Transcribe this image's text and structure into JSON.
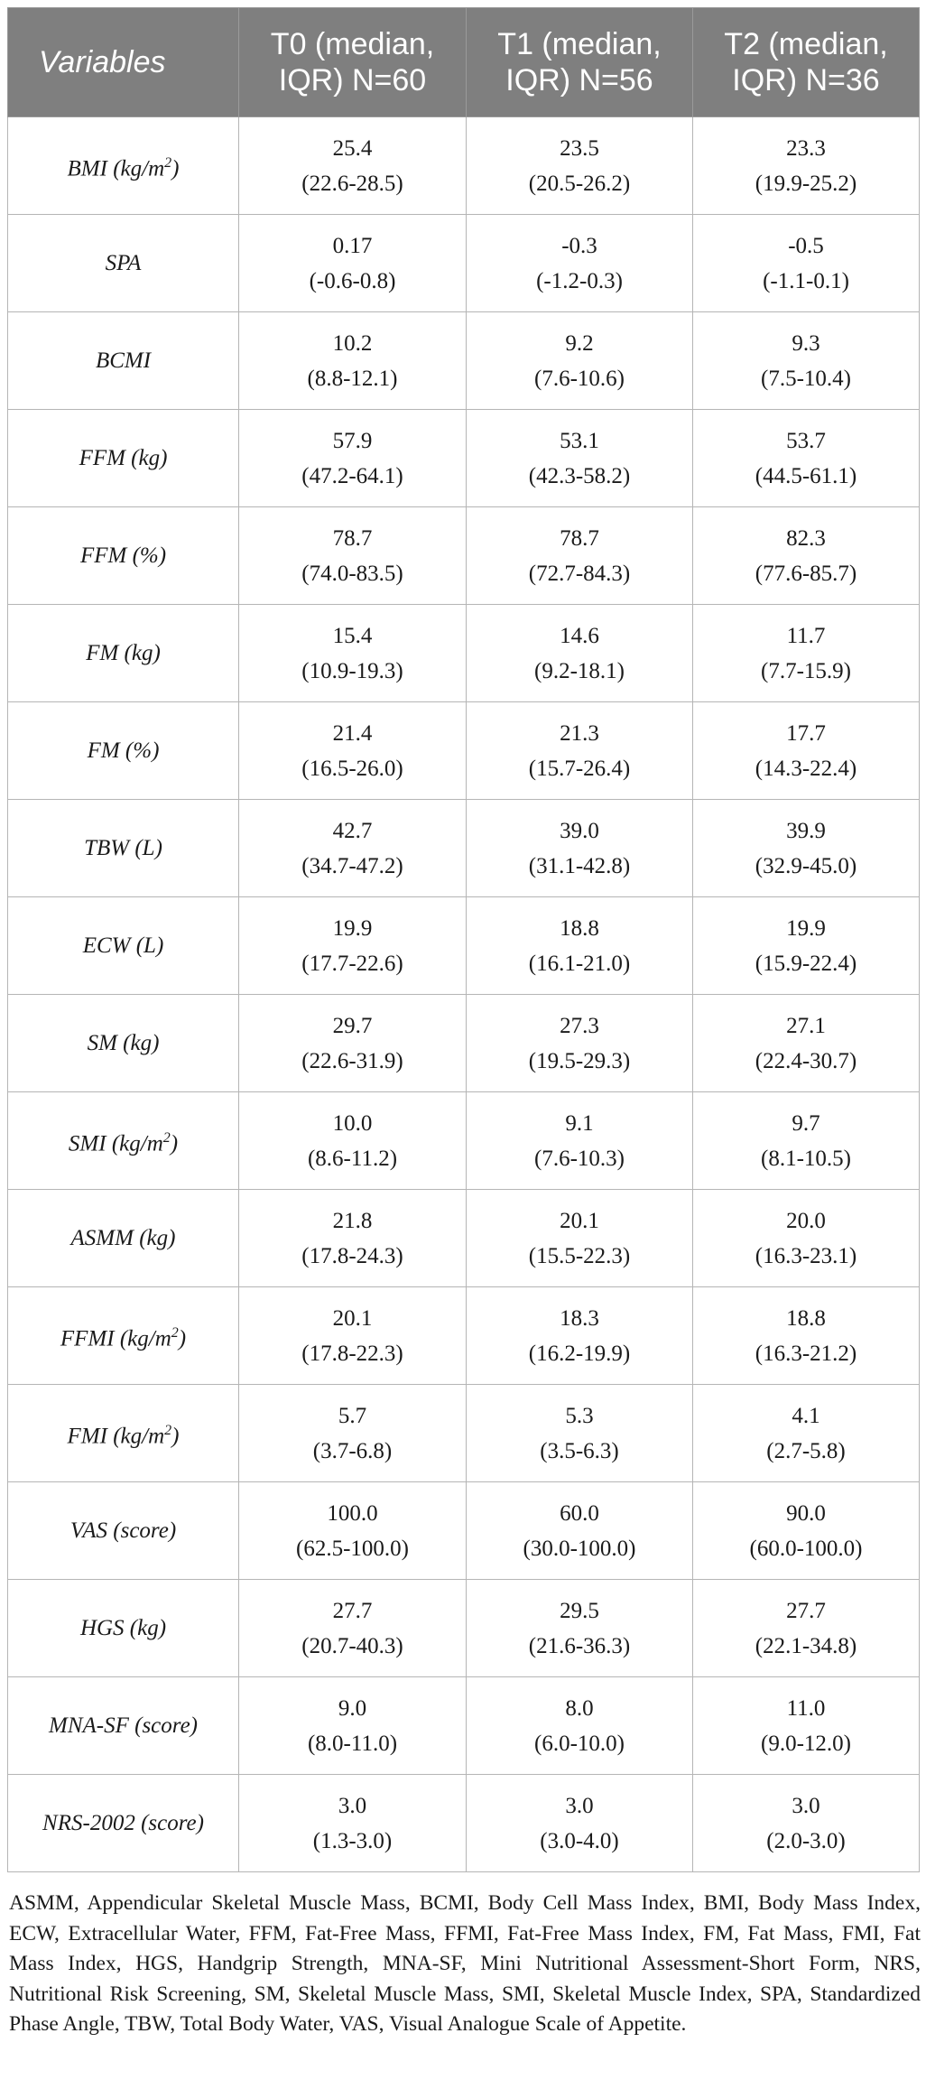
{
  "table": {
    "headers": [
      "Variables",
      "T0 (median, IQR) N=60",
      "T1 (median, IQR) N=56",
      "T2 (median, IQR) N=36"
    ],
    "header_lines": [
      [
        "Variables"
      ],
      [
        "T0 (median,",
        "IQR) N=60"
      ],
      [
        "T1 (median,",
        "IQR) N=56"
      ],
      [
        "T2 (median,",
        "IQR) N=36"
      ]
    ],
    "rows": [
      {
        "label": "BMI (kg/m",
        "sup": "2",
        "label_end": ")",
        "t0": [
          "25.4",
          "(22.6-28.5)"
        ],
        "t1": [
          "23.5",
          "(20.5-26.2)"
        ],
        "t2": [
          "23.3",
          "(19.9-25.2)"
        ]
      },
      {
        "label": "SPA",
        "t0": [
          "0.17",
          "(-0.6-0.8)"
        ],
        "t1": [
          "-0.3",
          "(-1.2-0.3)"
        ],
        "t2": [
          "-0.5",
          "(-1.1-0.1)"
        ]
      },
      {
        "label": "BCMI",
        "t0": [
          "10.2",
          "(8.8-12.1)"
        ],
        "t1": [
          "9.2",
          "(7.6-10.6)"
        ],
        "t2": [
          "9.3",
          "(7.5-10.4)"
        ]
      },
      {
        "label": "FFM (kg)",
        "t0": [
          "57.9",
          "(47.2-64.1)"
        ],
        "t1": [
          "53.1",
          "(42.3-58.2)"
        ],
        "t2": [
          "53.7",
          "(44.5-61.1)"
        ]
      },
      {
        "label": "FFM (%)",
        "t0": [
          "78.7",
          "(74.0-83.5)"
        ],
        "t1": [
          "78.7",
          "(72.7-84.3)"
        ],
        "t2": [
          "82.3",
          "(77.6-85.7)"
        ]
      },
      {
        "label": "FM (kg)",
        "t0": [
          "15.4",
          "(10.9-19.3)"
        ],
        "t1": [
          "14.6",
          "(9.2-18.1)"
        ],
        "t2": [
          "11.7",
          "(7.7-15.9)"
        ]
      },
      {
        "label": "FM (%)",
        "t0": [
          "21.4",
          "(16.5-26.0)"
        ],
        "t1": [
          "21.3",
          "(15.7-26.4)"
        ],
        "t2": [
          "17.7",
          "(14.3-22.4)"
        ]
      },
      {
        "label": "TBW (L)",
        "t0": [
          "42.7",
          "(34.7-47.2)"
        ],
        "t1": [
          "39.0",
          "(31.1-42.8)"
        ],
        "t2": [
          "39.9",
          "(32.9-45.0)"
        ]
      },
      {
        "label": "ECW (L)",
        "t0": [
          "19.9",
          "(17.7-22.6)"
        ],
        "t1": [
          "18.8",
          "(16.1-21.0)"
        ],
        "t2": [
          "19.9",
          "(15.9-22.4)"
        ]
      },
      {
        "label": "SM (kg)",
        "t0": [
          "29.7",
          "(22.6-31.9)"
        ],
        "t1": [
          "27.3",
          "(19.5-29.3)"
        ],
        "t2": [
          "27.1",
          "(22.4-30.7)"
        ]
      },
      {
        "label": "SMI (kg/m",
        "sup": "2",
        "label_end": ")",
        "t0": [
          "10.0",
          "(8.6-11.2)"
        ],
        "t1": [
          "9.1",
          "(7.6-10.3)"
        ],
        "t2": [
          "9.7",
          "(8.1-10.5)"
        ]
      },
      {
        "label": "ASMM (kg)",
        "t0": [
          "21.8",
          "(17.8-24.3)"
        ],
        "t1": [
          "20.1",
          "(15.5-22.3)"
        ],
        "t2": [
          "20.0",
          "(16.3-23.1)"
        ]
      },
      {
        "label": "FFMI (kg/m",
        "sup": "2",
        "label_end": ")",
        "t0": [
          "20.1",
          "(17.8-22.3)"
        ],
        "t1": [
          "18.3",
          "(16.2-19.9)"
        ],
        "t2": [
          "18.8",
          "(16.3-21.2)"
        ]
      },
      {
        "label": "FMI (kg/m",
        "sup": "2",
        "label_end": ")",
        "t0": [
          "5.7",
          "(3.7-6.8)"
        ],
        "t1": [
          "5.3",
          "(3.5-6.3)"
        ],
        "t2": [
          "4.1",
          "(2.7-5.8)"
        ]
      },
      {
        "label": "VAS (score)",
        "t0": [
          "100.0",
          "(62.5-100.0)"
        ],
        "t1": [
          "60.0",
          "(30.0-100.0)"
        ],
        "t2": [
          "90.0",
          "(60.0-100.0)"
        ]
      },
      {
        "label": "HGS (kg)",
        "t0": [
          "27.7",
          "(20.7-40.3)"
        ],
        "t1": [
          "29.5",
          "(21.6-36.3)"
        ],
        "t2": [
          "27.7",
          "(22.1-34.8)"
        ]
      },
      {
        "label": "MNA-SF (score)",
        "t0": [
          "9.0",
          "(8.0-11.0)"
        ],
        "t1": [
          "8.0",
          "(6.0-10.0)"
        ],
        "t2": [
          "11.0",
          "(9.0-12.0)"
        ]
      },
      {
        "label": "NRS-2002 (score)",
        "t0": [
          "3.0",
          "(1.3-3.0)"
        ],
        "t1": [
          "3.0",
          "(3.0-4.0)"
        ],
        "t2": [
          "3.0",
          "(2.0-3.0)"
        ]
      }
    ]
  },
  "footnote": "ASMM, Appendicular Skeletal Muscle Mass, BCMI, Body Cell Mass Index, BMI, Body Mass Index, ECW, Extracellular Water, FFM, Fat-Free Mass, FFMI, Fat-Free Mass Index, FM, Fat Mass, FMI, Fat Mass Index, HGS, Handgrip Strength, MNA-SF, Mini Nutritional Assessment-Short Form, NRS, Nutritional Risk Screening, SM, Skeletal Muscle Mass, SMI, Skeletal Muscle Index, SPA, Standardized Phase Angle, TBW, Total Body Water, VAS, Visual Analogue Scale of Appetite.",
  "colors": {
    "header_bg": "#7f7f7f",
    "header_text": "#ffffff",
    "border": "#b5b5b5"
  }
}
